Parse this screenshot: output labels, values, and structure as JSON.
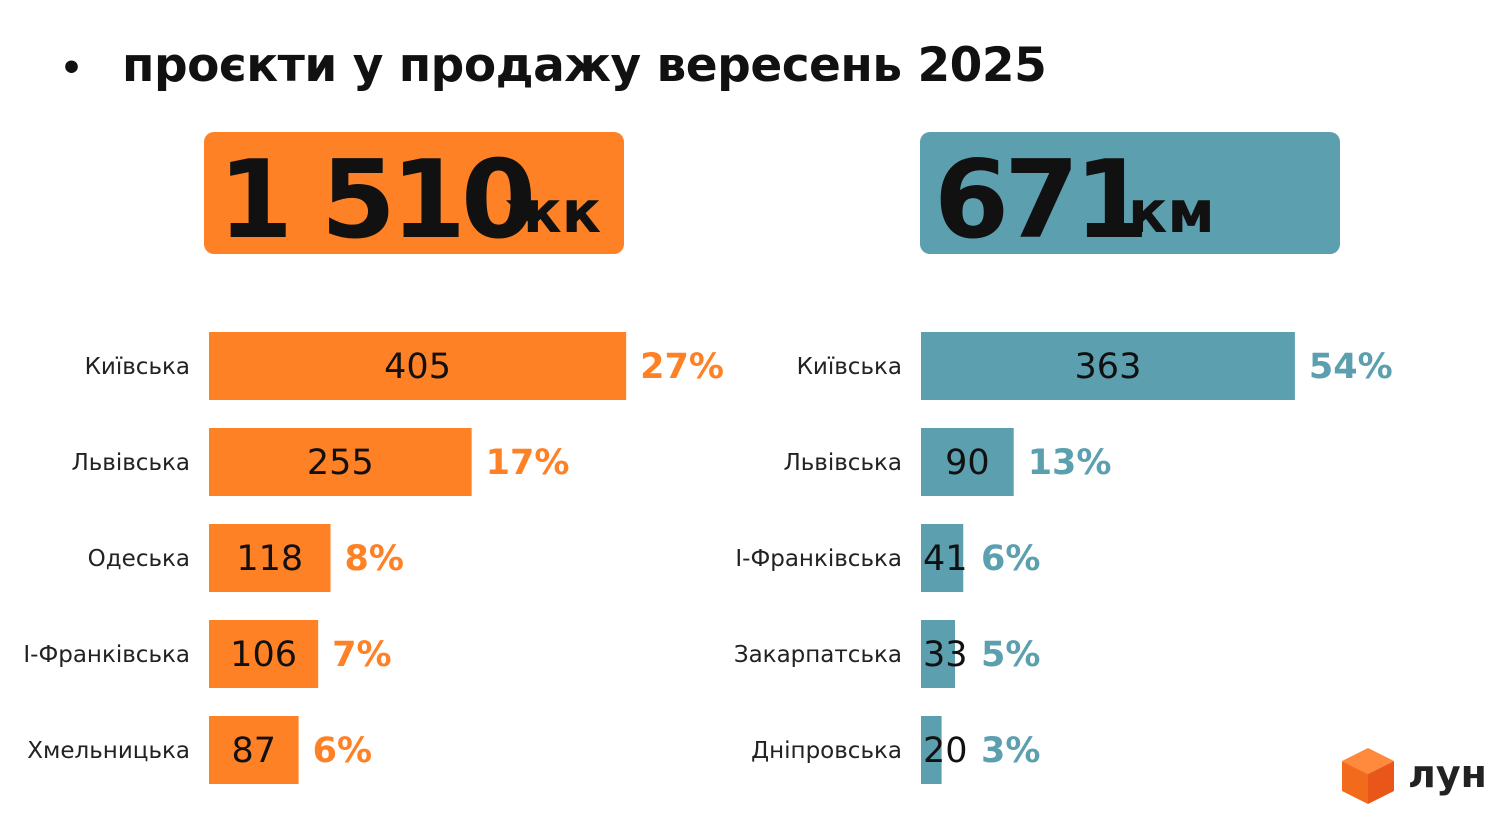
{
  "title": "проєкти у продажу вересень 2025",
  "bullet": "•",
  "totals": [
    {
      "value": "1 510",
      "unit": "жк",
      "color": "#FF8126"
    },
    {
      "value": "671",
      "unit": "км",
      "color": "#5C9FAF"
    }
  ],
  "logo": {
    "text": "лун",
    "color": "#F26B1D"
  },
  "chart_data": [
    {
      "type": "bar",
      "orientation": "horizontal",
      "title": "ЖК",
      "color": "#FF8126",
      "categories": [
        "Київська",
        "Львівська",
        "Одеська",
        "І-Франківська",
        "Хмельницька"
      ],
      "values": [
        405,
        255,
        118,
        106,
        87
      ],
      "labels": [
        "27%",
        "17%",
        "8%",
        "7%",
        "6%"
      ]
    },
    {
      "type": "bar",
      "orientation": "horizontal",
      "title": "КМ",
      "color": "#5C9FAF",
      "categories": [
        "Київська",
        "Львівська",
        "І-Франківська",
        "Закарпатська",
        "Дніпровська"
      ],
      "values": [
        363,
        90,
        41,
        33,
        20
      ],
      "labels": [
        "54%",
        "13%",
        "6%",
        "5%",
        "3%"
      ]
    }
  ]
}
